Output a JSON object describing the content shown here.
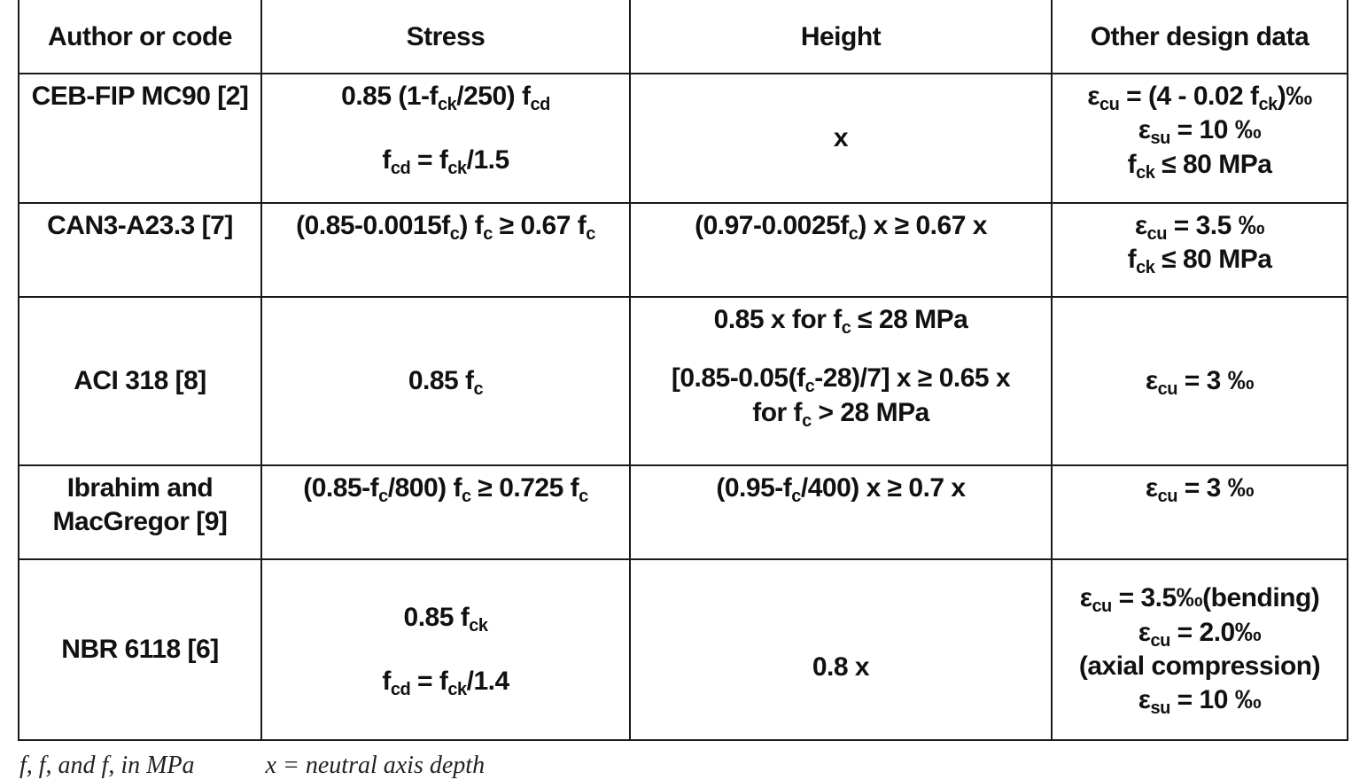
{
  "table": {
    "headers": [
      "Author or code",
      "Stress",
      "Height",
      "Other design data"
    ],
    "rows": [
      {
        "author": "CEB-FIP MC90 [2]",
        "stress": [
          "0.85 (1-f<sub>ck</sub>/250) f<sub>cd</sub>",
          "",
          "f<sub>cd</sub> = f<sub>ck</sub>/1.5"
        ],
        "height": [
          "x"
        ],
        "other": [
          "&epsilon;<sub>cu</sub> = (4 - 0.02 f<sub>ck</sub>)&permil;",
          "&epsilon;<sub>su</sub> = 10 &permil;",
          "f<sub>ck</sub> &le; 80 MPa"
        ]
      },
      {
        "author": "CAN3-A23.3 [7]",
        "stress": [
          "(0.85-0.0015f<sub>c</sub>) f<sub>c</sub> &ge; 0.67 f<sub>c</sub>"
        ],
        "height": [
          "(0.97-0.0025f<sub>c</sub>) x &ge; 0.67 x"
        ],
        "other": [
          "&epsilon;<sub>cu</sub> = 3.5 &permil;",
          "f<sub>ck</sub> &le; 80 MPa"
        ]
      },
      {
        "author": "ACI 318 [8]",
        "stress": [
          "0.85 f<sub>c</sub>"
        ],
        "height": [
          "0.85 x for f<sub>c</sub> &le; 28 MPa",
          "",
          "[0.85-0.05(f<sub>c</sub>-28)/7] x &ge; 0.65 x",
          "for f<sub>c</sub> &gt; 28 MPa"
        ],
        "other": [
          "&epsilon;<sub>cu</sub> = 3 &permil;"
        ]
      },
      {
        "author": [
          "Ibrahim and",
          "MacGregor [9]"
        ],
        "stress": [
          "(0.85-f<sub>c</sub>/800) f<sub>c</sub> &ge; 0.725 f<sub>c</sub>"
        ],
        "height": [
          "(0.95-f<sub>c</sub>/400) x &ge; 0.7 x"
        ],
        "other": [
          "&epsilon;<sub>cu</sub> = 3 &permil;"
        ]
      },
      {
        "author": "NBR 6118 [6]",
        "stress": [
          "0.85 f<sub>ck</sub>",
          "",
          "f<sub>cd</sub> = f<sub>ck</sub>/1.4"
        ],
        "height": [
          "0.8 x"
        ],
        "other": [
          "&epsilon;<sub>cu</sub> = 3.5&permil;(bending)",
          "&epsilon;<sub>cu</sub> = 2.0&permil;",
          "(axial compression)",
          "&epsilon;<sub>su</sub> = 10 &permil;"
        ]
      }
    ]
  },
  "footnote": {
    "left": "f, f, and f, in MPa",
    "right": "x = neutral axis depth"
  }
}
